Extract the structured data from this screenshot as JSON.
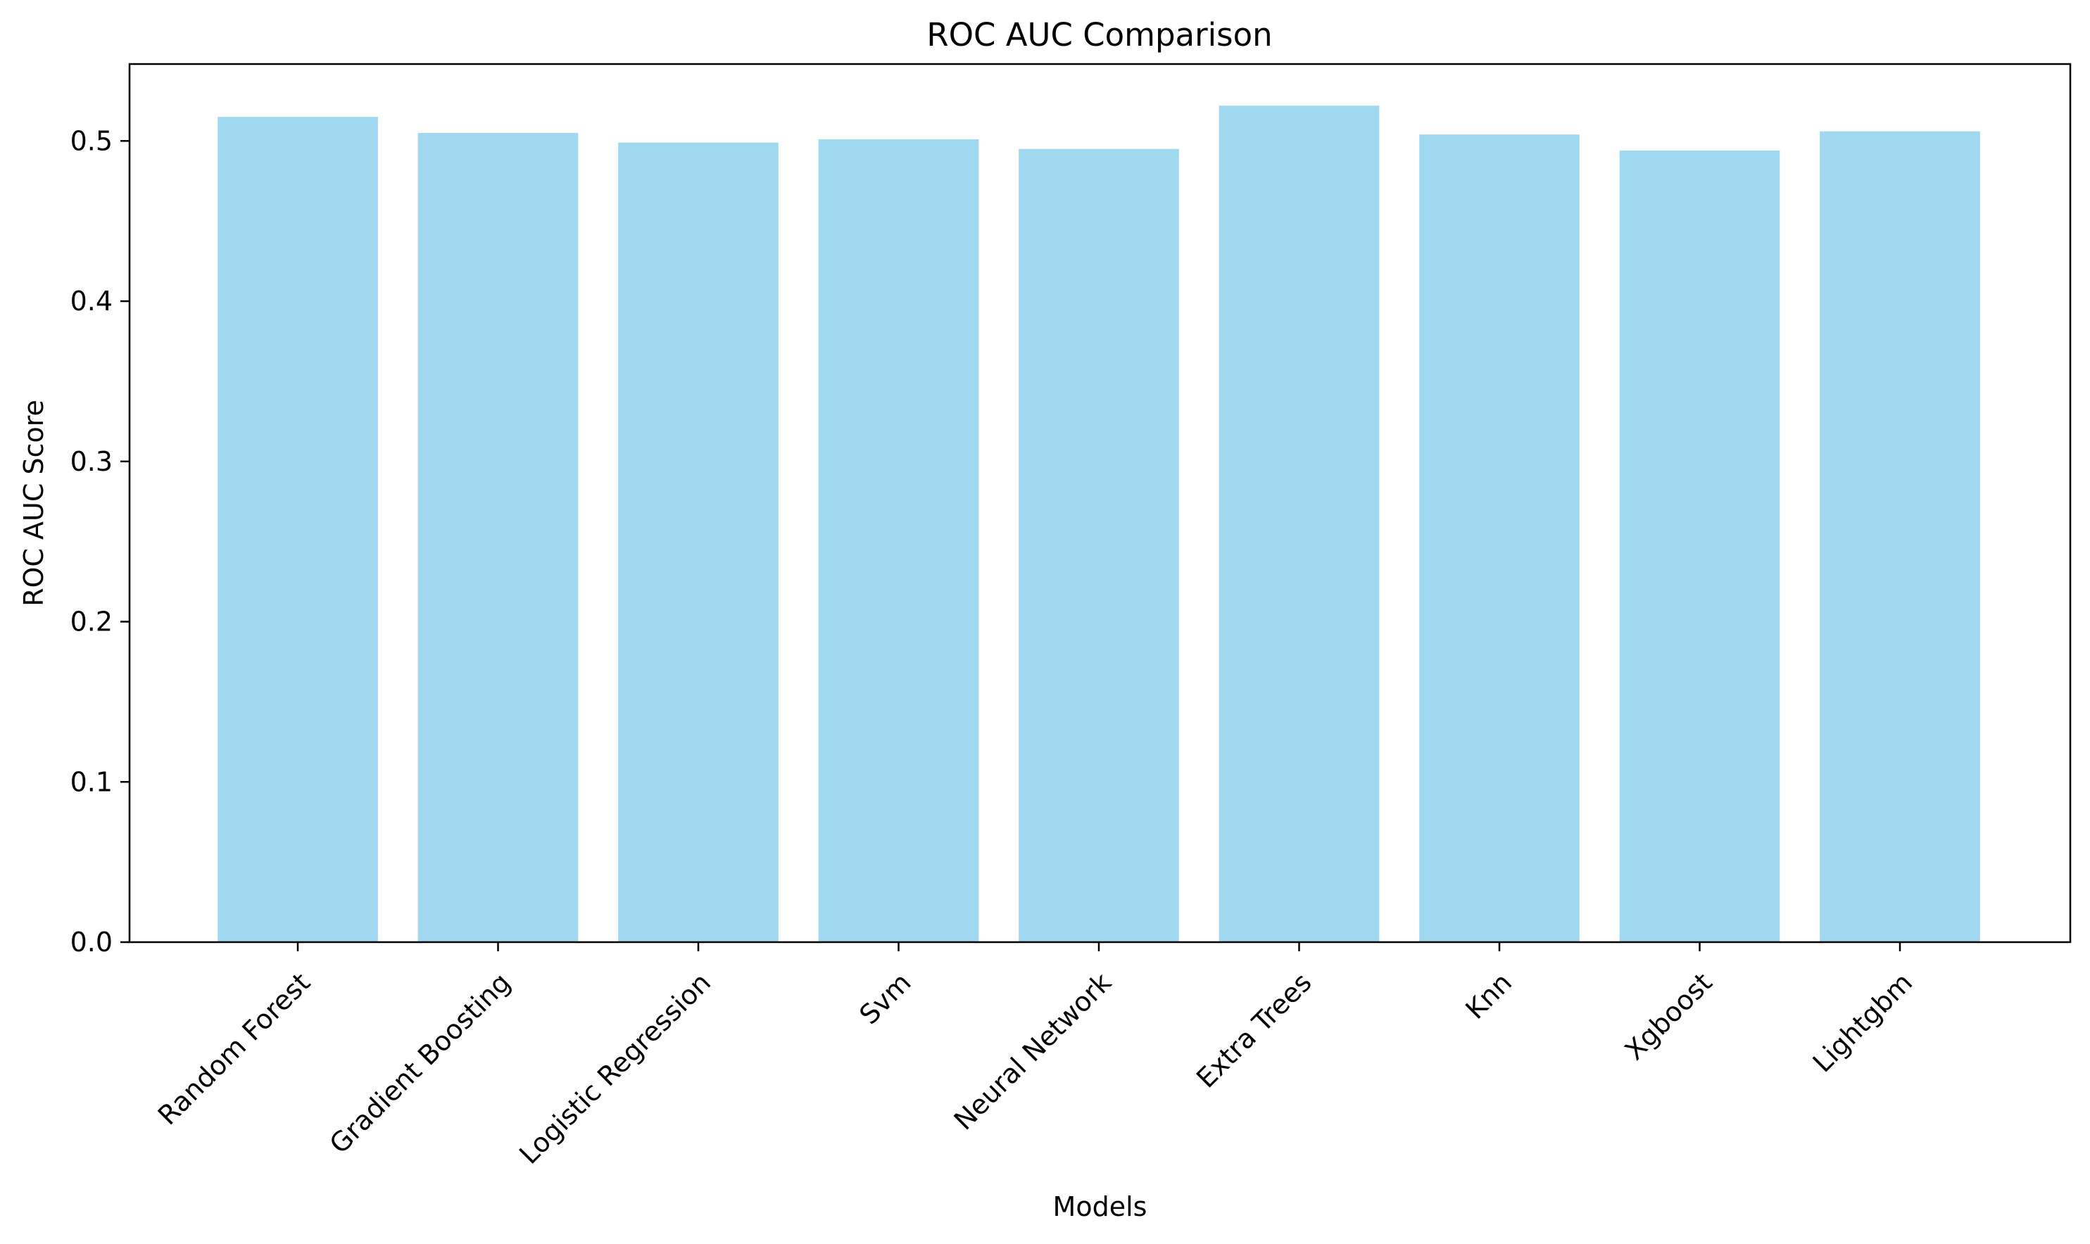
{
  "chart_data": {
    "type": "bar",
    "title": "ROC AUC Comparison",
    "xlabel": "Models",
    "ylabel": "ROC AUC Score",
    "categories": [
      "Random Forest",
      "Gradient Boosting",
      "Logistic Regression",
      "Svm",
      "Neural Network",
      "Extra Trees",
      "Knn",
      "Xgboost",
      "Lightgbm"
    ],
    "values": [
      0.515,
      0.505,
      0.499,
      0.501,
      0.495,
      0.522,
      0.504,
      0.494,
      0.506
    ],
    "ylim": [
      0,
      0.548
    ],
    "yticks": [
      0.0,
      0.1,
      0.2,
      0.3,
      0.4,
      0.5
    ],
    "ytick_labels": [
      "0.0",
      "0.1",
      "0.2",
      "0.3",
      "0.4",
      "0.5"
    ],
    "bar_color": "#87ceeb",
    "bar_opacity": 0.8,
    "grid": false,
    "legend": "none"
  }
}
